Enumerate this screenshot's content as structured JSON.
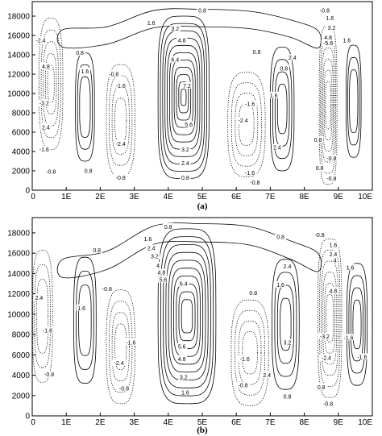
{
  "chart_data": [
    {
      "type": "contour",
      "panel_label": "(a)",
      "xlabel": "",
      "ylabel": "",
      "x_ticks": [
        "0",
        "1E",
        "2E",
        "3E",
        "4E",
        "5E",
        "6E",
        "7E",
        "8E",
        "9E",
        "10E"
      ],
      "x_range": [
        0,
        10
      ],
      "y_ticks": [
        "0",
        "2000",
        "4000",
        "6000",
        "8000",
        "10000",
        "12000",
        "14000",
        "16000",
        "18000"
      ],
      "y_range": [
        0,
        19500
      ],
      "grid": false,
      "legend": "none",
      "line_styles": {
        "positive": "solid",
        "negative": "dotted"
      },
      "contour_labels": [
        {
          "x": 5.0,
          "y": 18600,
          "text": "0.8"
        },
        {
          "x": 3.5,
          "y": 17300,
          "text": "1.6"
        },
        {
          "x": 4.2,
          "y": 16700,
          "text": "3.2"
        },
        {
          "x": 4.4,
          "y": 15500,
          "text": "4.8"
        },
        {
          "x": 4.2,
          "y": 13500,
          "text": "6.4"
        },
        {
          "x": 4.55,
          "y": 10800,
          "text": "7.2"
        },
        {
          "x": 4.6,
          "y": 6800,
          "text": "5.6"
        },
        {
          "x": 4.5,
          "y": 4200,
          "text": "3.2"
        },
        {
          "x": 4.5,
          "y": 2800,
          "text": "2.4"
        },
        {
          "x": 4.5,
          "y": 1300,
          "text": "0.8"
        },
        {
          "x": 0.25,
          "y": 15500,
          "text": "-2.4"
        },
        {
          "x": 0.4,
          "y": 12800,
          "text": "4.8"
        },
        {
          "x": 0.35,
          "y": 9000,
          "text": "-3.2"
        },
        {
          "x": 0.4,
          "y": 6500,
          "text": "2.4"
        },
        {
          "x": 0.35,
          "y": 4200,
          "text": "-1.6"
        },
        {
          "x": 0.55,
          "y": 1900,
          "text": "-0.8"
        },
        {
          "x": 1.4,
          "y": 14200,
          "text": "0.8"
        },
        {
          "x": 1.55,
          "y": 12300,
          "text": "1.6"
        },
        {
          "x": 1.65,
          "y": 2000,
          "text": "0.8"
        },
        {
          "x": 2.4,
          "y": 12000,
          "text": "-0.8"
        },
        {
          "x": 2.6,
          "y": 10800,
          "text": "-1.6"
        },
        {
          "x": 2.6,
          "y": 4800,
          "text": "-2.4"
        },
        {
          "x": 2.6,
          "y": 1300,
          "text": "-0.8"
        },
        {
          "x": 6.2,
          "y": 7200,
          "text": "-2.4"
        },
        {
          "x": 6.4,
          "y": 8900,
          "text": "-1.6"
        },
        {
          "x": 6.4,
          "y": 1800,
          "text": "-1.6"
        },
        {
          "x": 6.55,
          "y": 800,
          "text": "-0.8"
        },
        {
          "x": 6.6,
          "y": 14300,
          "text": "0.8"
        },
        {
          "x": 7.1,
          "y": 9800,
          "text": "1.6"
        },
        {
          "x": 7.2,
          "y": 4400,
          "text": "2.4"
        },
        {
          "x": 7.4,
          "y": 12600,
          "text": "0.8"
        },
        {
          "x": 7.65,
          "y": 13700,
          "text": "2.4"
        },
        {
          "x": 8.6,
          "y": 18600,
          "text": "-0.8"
        },
        {
          "x": 8.75,
          "y": 17800,
          "text": "1.6"
        },
        {
          "x": 8.8,
          "y": 16800,
          "text": "3.2"
        },
        {
          "x": 8.7,
          "y": 15800,
          "text": "4.8"
        },
        {
          "x": 8.7,
          "y": 15200,
          "text": "-5.6"
        },
        {
          "x": 9.25,
          "y": 15500,
          "text": "1.6"
        },
        {
          "x": 8.4,
          "y": 5200,
          "text": "0.8"
        },
        {
          "x": 8.8,
          "y": 3300,
          "text": "-0.8"
        },
        {
          "x": 8.8,
          "y": 1200,
          "text": "-0.8"
        },
        {
          "x": 8.45,
          "y": 2300,
          "text": "0.8"
        }
      ]
    },
    {
      "type": "contour",
      "panel_label": "(b)",
      "xlabel": "",
      "ylabel": "",
      "x_ticks": [
        "0",
        "1E",
        "2E",
        "3E",
        "4E",
        "5E",
        "6E",
        "7E",
        "8E",
        "9E",
        "10E"
      ],
      "x_range": [
        0,
        10
      ],
      "y_ticks": [
        "0",
        "2000",
        "4000",
        "6000",
        "8000",
        "10000",
        "12000",
        "14000",
        "16000",
        "18000"
      ],
      "y_range": [
        0,
        19500
      ],
      "grid": false,
      "legend": "none",
      "line_styles": {
        "positive": "solid",
        "negative": "dotted"
      },
      "contour_labels": [
        {
          "x": 4.0,
          "y": 18600,
          "text": "0.8"
        },
        {
          "x": 3.4,
          "y": 17400,
          "text": "1.6"
        },
        {
          "x": 3.5,
          "y": 16500,
          "text": "2.4"
        },
        {
          "x": 3.6,
          "y": 15700,
          "text": "3.2"
        },
        {
          "x": 3.7,
          "y": 14800,
          "text": "4"
        },
        {
          "x": 3.8,
          "y": 14100,
          "text": "4.8"
        },
        {
          "x": 3.85,
          "y": 13400,
          "text": "5.6"
        },
        {
          "x": 4.45,
          "y": 13000,
          "text": "6.4"
        },
        {
          "x": 4.4,
          "y": 6800,
          "text": "5.6"
        },
        {
          "x": 4.4,
          "y": 5600,
          "text": "4.8"
        },
        {
          "x": 4.45,
          "y": 3800,
          "text": "3.2"
        },
        {
          "x": 4.5,
          "y": 2300,
          "text": "1.6"
        },
        {
          "x": 1.9,
          "y": 16300,
          "text": "0.8"
        },
        {
          "x": 0.2,
          "y": 11600,
          "text": "2.4"
        },
        {
          "x": 0.45,
          "y": 8400,
          "text": "-1.6"
        },
        {
          "x": 0.5,
          "y": 4100,
          "text": "-0.8"
        },
        {
          "x": 1.45,
          "y": 10600,
          "text": "1.6"
        },
        {
          "x": 2.2,
          "y": 12500,
          "text": "-0.8"
        },
        {
          "x": 2.55,
          "y": 5200,
          "text": "-2.4"
        },
        {
          "x": 2.9,
          "y": 7200,
          "text": "-1.6"
        },
        {
          "x": 2.7,
          "y": 2700,
          "text": "-0.8"
        },
        {
          "x": 6.2,
          "y": 3000,
          "text": "-0.8"
        },
        {
          "x": 6.25,
          "y": 5600,
          "text": "-1.6"
        },
        {
          "x": 6.9,
          "y": 4000,
          "text": "2.4"
        },
        {
          "x": 6.5,
          "y": 12100,
          "text": "0.8"
        },
        {
          "x": 7.3,
          "y": 12900,
          "text": "1.6"
        },
        {
          "x": 7.5,
          "y": 14700,
          "text": "2.4"
        },
        {
          "x": 7.3,
          "y": 17600,
          "text": "0.8"
        },
        {
          "x": 7.5,
          "y": 7200,
          "text": "3.2"
        },
        {
          "x": 7.5,
          "y": 1900,
          "text": "0.8"
        },
        {
          "x": 8.45,
          "y": 17800,
          "text": "-0.8"
        },
        {
          "x": 8.85,
          "y": 16800,
          "text": "1.6"
        },
        {
          "x": 8.85,
          "y": 15900,
          "text": "2.4"
        },
        {
          "x": 8.9,
          "y": 15300,
          "text": "4"
        },
        {
          "x": 8.85,
          "y": 12300,
          "text": "4.8"
        },
        {
          "x": 9.35,
          "y": 14600,
          "text": "1.6"
        },
        {
          "x": 8.6,
          "y": 7800,
          "text": "-3.2"
        },
        {
          "x": 8.65,
          "y": 5700,
          "text": "-2.4"
        },
        {
          "x": 9.3,
          "y": 7700,
          "text": "-1.6"
        },
        {
          "x": 9.7,
          "y": 5800,
          "text": "-1.6"
        },
        {
          "x": 8.7,
          "y": 1200,
          "text": "-0.8"
        },
        {
          "x": 8.5,
          "y": 2800,
          "text": "0.8"
        }
      ]
    }
  ]
}
